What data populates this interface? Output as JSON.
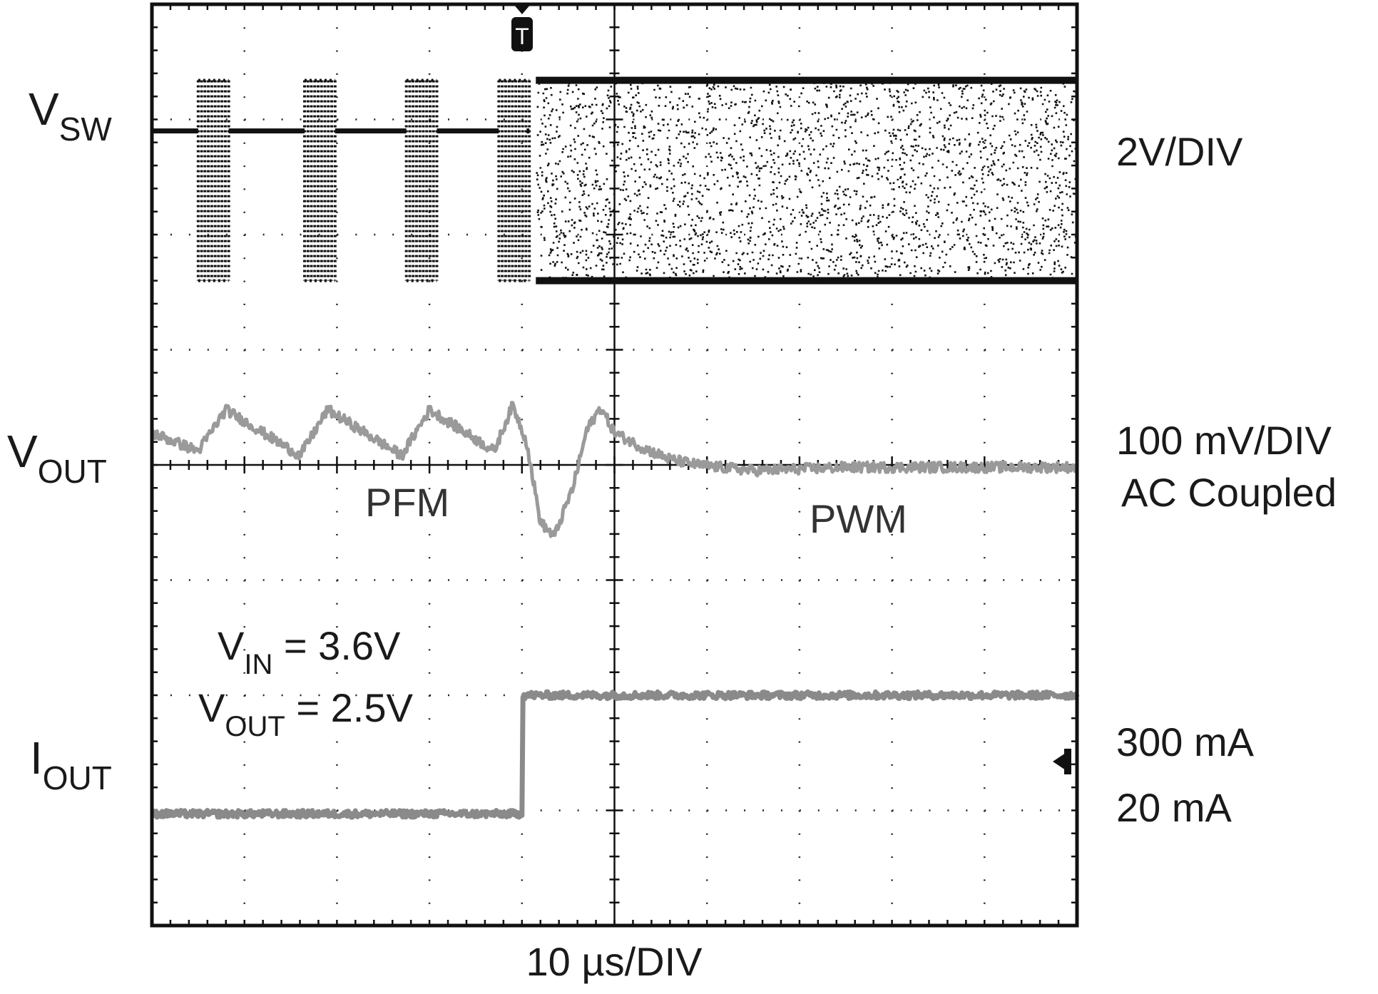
{
  "chart_data": {
    "type": "line",
    "title": "",
    "xlabel": "10 µs/DIV",
    "grid": true,
    "grid_divisions": {
      "x": 10,
      "y": 8
    },
    "trigger_marker": "T",
    "trigger_time_us": -10,
    "x_range_us": [
      -50,
      50
    ],
    "series": [
      {
        "key": "vsw",
        "name_main": "V",
        "name_sub": "SW",
        "scale": "2V/DIV",
        "color": "#111111",
        "style": "switching",
        "pfm_bursts_start_us": [
          -45,
          -33.5,
          -22.5,
          -12.5
        ],
        "pwm_start_us": -8.5,
        "levels_div": {
          "idle": 2.9,
          "high": 3.34,
          "low": 1.6
        }
      },
      {
        "key": "vout",
        "name_main": "V",
        "name_sub": "OUT",
        "scale": "100 mV/DIV",
        "coupling": "AC Coupled",
        "color": "#9a9a9a",
        "style": "noisy",
        "x_us": [
          -50,
          -45,
          -42,
          -34,
          -31,
          -23,
          -20,
          -13,
          -11,
          -9.5,
          -8,
          -6.5,
          -4.5,
          -3,
          -1.5,
          0,
          3,
          6,
          9,
          15,
          25,
          35,
          50
        ],
        "y_div": [
          0.28,
          0.12,
          0.48,
          0.08,
          0.48,
          0.08,
          0.48,
          0.12,
          0.52,
          0.2,
          -0.5,
          -0.62,
          -0.2,
          0.3,
          0.5,
          0.28,
          0.15,
          0.05,
          0.0,
          -0.05,
          -0.02,
          -0.02,
          -0.02
        ]
      },
      {
        "key": "iout",
        "name_main": "I",
        "name_sub": "OUT",
        "color": "#8a8a8a",
        "style": "noisy",
        "x_us": [
          -50,
          -10,
          -10,
          50
        ],
        "y_div": [
          -3.03,
          -3.03,
          -2.0,
          -2.0
        ],
        "levels": [
          "300 mA",
          "20 mA"
        ]
      }
    ],
    "annotations": {
      "pfm": "PFM",
      "pwm": "PWM",
      "vin": {
        "main": "V",
        "sub": "IN",
        "rest": " = 3.6V"
      },
      "vout_cond": {
        "main": "V",
        "sub": "OUT",
        "rest": " = 2.5V"
      }
    }
  }
}
